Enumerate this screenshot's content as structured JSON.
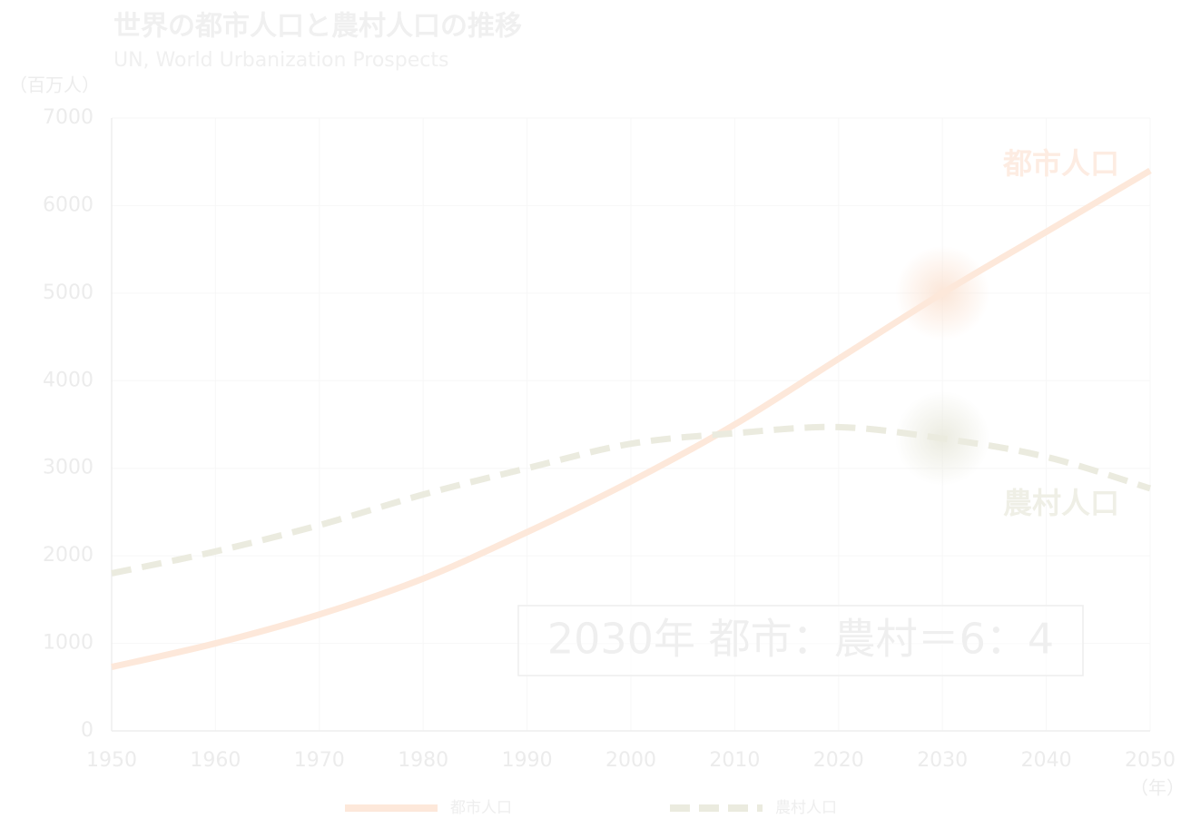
{
  "chart_data": {
    "type": "line",
    "title": "世界の都市人口と農村人口の推移",
    "subtitle": "UN, World Urbanization Prospects",
    "y_label": "（百万人）",
    "x_label": "（年）",
    "annotation": "2030年 都市：農村＝6：4",
    "x": [
      1950,
      1960,
      1970,
      1980,
      1990,
      2000,
      2010,
      2020,
      2030,
      2040,
      2050
    ],
    "series": [
      {
        "name": "都市人口",
        "color": "#fde8da",
        "dash": false,
        "values": [
          730,
          1000,
          1330,
          1740,
          2270,
          2850,
          3500,
          4250,
          5000,
          5700,
          6400
        ]
      },
      {
        "name": "農村人口",
        "color": "#ebebdf",
        "dash": true,
        "values": [
          1800,
          2050,
          2350,
          2700,
          3000,
          3280,
          3400,
          3470,
          3340,
          3130,
          2770
        ]
      }
    ],
    "xlim": [
      1950,
      2050
    ],
    "xticks": [
      1950,
      1960,
      1970,
      1980,
      1990,
      2000,
      2010,
      2020,
      2030,
      2040,
      2050
    ],
    "ylim": [
      0,
      7000
    ],
    "yticks": [
      0,
      1000,
      2000,
      3000,
      4000,
      5000,
      6000,
      7000
    ],
    "grid": true
  }
}
